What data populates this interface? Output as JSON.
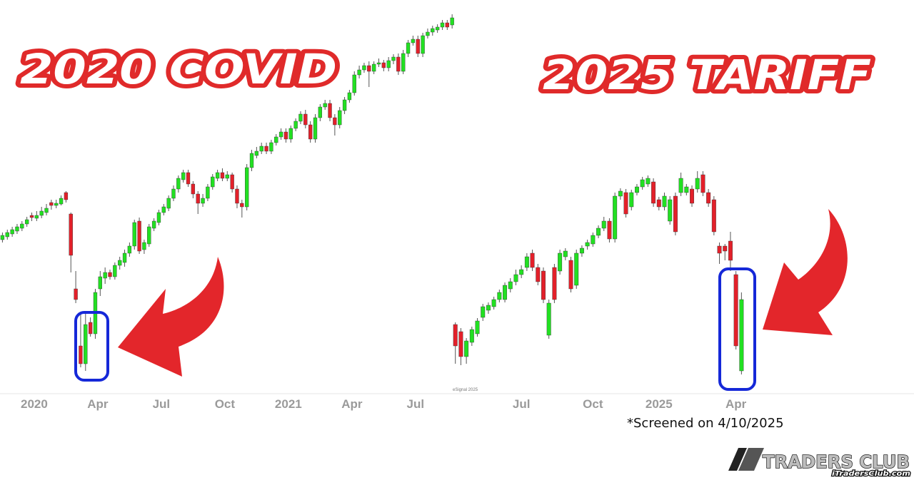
{
  "chart_data": [
    {
      "type": "candlestick",
      "title": "2020 COVID",
      "up_color": "#22e022",
      "down_color": "#e3202a",
      "xlim": [
        -0.5,
        93
      ],
      "ylim": [
        0,
        550
      ],
      "xticks": [
        {
          "value": 6.5,
          "label": "2020"
        },
        {
          "value": 19.5,
          "label": "Apr"
        },
        {
          "value": 32.5,
          "label": "Jul"
        },
        {
          "value": 45.5,
          "label": "Oct"
        },
        {
          "value": 58.5,
          "label": "2021"
        },
        {
          "value": 71.5,
          "label": "Apr"
        },
        {
          "value": 84.5,
          "label": "Jul"
        }
      ],
      "open": [
        214,
        218,
        222,
        226,
        230,
        236,
        248,
        244,
        248,
        252,
        266,
        262,
        264,
        280,
        250,
        145,
        65,
        40,
        98,
        82,
        145,
        160,
        168,
        162,
        178,
        182,
        195,
        205,
        240,
        200,
        208,
        230,
        238,
        252,
        258,
        272,
        285,
        298,
        308,
        292,
        278,
        265,
        272,
        288,
        300,
        308,
        300,
        305,
        285,
        265,
        260,
        315,
        332,
        338,
        345,
        338,
        350,
        358,
        365,
        355,
        370,
        380,
        390,
        375,
        355,
        385,
        400,
        405,
        385,
        375,
        395,
        410,
        420,
        445,
        452,
        458,
        450,
        460,
        462,
        455,
        465,
        470,
        450,
        475,
        490,
        495,
        475,
        500,
        505,
        508,
        512,
        518,
        515
      ],
      "high": [
        224,
        228,
        232,
        236,
        240,
        246,
        252,
        254,
        260,
        264,
        270,
        270,
        276,
        282,
        252,
        170,
        110,
        110,
        105,
        145,
        170,
        175,
        172,
        182,
        190,
        200,
        210,
        242,
        245,
        214,
        236,
        244,
        256,
        264,
        276,
        290,
        304,
        312,
        312,
        296,
        282,
        278,
        292,
        306,
        312,
        314,
        310,
        308,
        290,
        270,
        320,
        340,
        344,
        350,
        350,
        354,
        362,
        370,
        370,
        374,
        384,
        394,
        396,
        380,
        390,
        404,
        410,
        410,
        390,
        400,
        414,
        424,
        450,
        458,
        462,
        464,
        464,
        468,
        466,
        470,
        474,
        475,
        480,
        494,
        500,
        500,
        504,
        510,
        514,
        516,
        522,
        522,
        530
      ],
      "low": [
        210,
        214,
        218,
        222,
        226,
        232,
        240,
        240,
        244,
        248,
        256,
        258,
        262,
        266,
        168,
        125,
        35,
        30,
        78,
        75,
        135,
        152,
        158,
        158,
        172,
        176,
        190,
        200,
        194,
        194,
        204,
        226,
        234,
        248,
        254,
        268,
        280,
        294,
        288,
        272,
        250,
        260,
        268,
        284,
        296,
        296,
        296,
        280,
        258,
        245,
        255,
        310,
        328,
        334,
        334,
        334,
        346,
        354,
        350,
        350,
        366,
        376,
        370,
        350,
        350,
        380,
        396,
        380,
        360,
        370,
        390,
        406,
        416,
        440,
        448,
        428,
        446,
        456,
        450,
        450,
        460,
        445,
        446,
        470,
        486,
        470,
        470,
        496,
        500,
        504,
        508,
        508,
        510
      ],
      "close": [
        220,
        224,
        228,
        232,
        236,
        242,
        245,
        248,
        254,
        258,
        262,
        265,
        272,
        270,
        192,
        130,
        40,
        95,
        82,
        140,
        162,
        168,
        162,
        178,
        185,
        195,
        205,
        238,
        198,
        210,
        232,
        240,
        252,
        260,
        272,
        285,
        300,
        308,
        292,
        278,
        265,
        272,
        288,
        302,
        308,
        300,
        305,
        285,
        265,
        260,
        315,
        335,
        338,
        345,
        338,
        350,
        358,
        365,
        355,
        370,
        380,
        390,
        375,
        355,
        385,
        400,
        405,
        385,
        375,
        395,
        410,
        420,
        445,
        452,
        458,
        450,
        460,
        462,
        455,
        465,
        470,
        450,
        475,
        490,
        495,
        475,
        500,
        505,
        510,
        512,
        518,
        512,
        525
      ]
    },
    {
      "type": "candlestick",
      "title": "2025 TARIFF",
      "up_color": "#22e022",
      "down_color": "#e3202a",
      "xlim": [
        -1,
        60
      ],
      "ylim": [
        0,
        550
      ],
      "xticks": [
        {
          "value": 12,
          "label": "Jul"
        },
        {
          "value": 25,
          "label": "Oct"
        },
        {
          "value": 37,
          "label": "2025"
        },
        {
          "value": 51,
          "label": "Apr"
        }
      ],
      "open": [
        95,
        85,
        50,
        70,
        82,
        105,
        115,
        120,
        130,
        130,
        145,
        155,
        165,
        175,
        195,
        175,
        170,
        80,
        175,
        170,
        190,
        185,
        150,
        195,
        205,
        208,
        220,
        230,
        240,
        215,
        275,
        280,
        260,
        280,
        288,
        292,
        295,
        270,
        260,
        240,
        275,
        280,
        280,
        285,
        285,
        305,
        280,
        270,
        205,
        205,
        212,
        165,
        30
      ],
      "high": [
        98,
        90,
        76,
        92,
        104,
        124,
        126,
        134,
        144,
        154,
        160,
        172,
        178,
        195,
        200,
        180,
        175,
        130,
        180,
        200,
        202,
        190,
        200,
        206,
        214,
        224,
        234,
        246,
        244,
        280,
        286,
        285,
        284,
        292,
        302,
        304,
        300,
        274,
        280,
        275,
        280,
        308,
        292,
        290,
        310,
        310,
        285,
        275,
        210,
        208,
        225,
        170,
        140
      ],
      "low": [
        40,
        38,
        40,
        65,
        78,
        100,
        110,
        116,
        126,
        126,
        140,
        150,
        160,
        170,
        170,
        150,
        125,
        75,
        125,
        165,
        185,
        140,
        145,
        190,
        200,
        204,
        216,
        226,
        210,
        210,
        270,
        245,
        255,
        276,
        284,
        288,
        260,
        255,
        255,
        235,
        220,
        275,
        276,
        260,
        280,
        275,
        260,
        220,
        180,
        185,
        170,
        60,
        25
      ],
      "close": [
        65,
        50,
        72,
        88,
        100,
        120,
        122,
        130,
        140,
        150,
        155,
        165,
        172,
        190,
        175,
        155,
        130,
        125,
        130,
        195,
        198,
        145,
        195,
        202,
        210,
        220,
        230,
        240,
        215,
        275,
        282,
        250,
        280,
        288,
        298,
        300,
        265,
        260,
        275,
        270,
        225,
        300,
        288,
        265,
        300,
        280,
        265,
        225,
        195,
        198,
        185,
        65,
        130
      ]
    }
  ],
  "annotation": "*Screened on 4/10/2025",
  "watermark": "eSignal 2025",
  "logo": {
    "name": "TRADERS CLUB",
    "site": "iTradersClub.com"
  }
}
